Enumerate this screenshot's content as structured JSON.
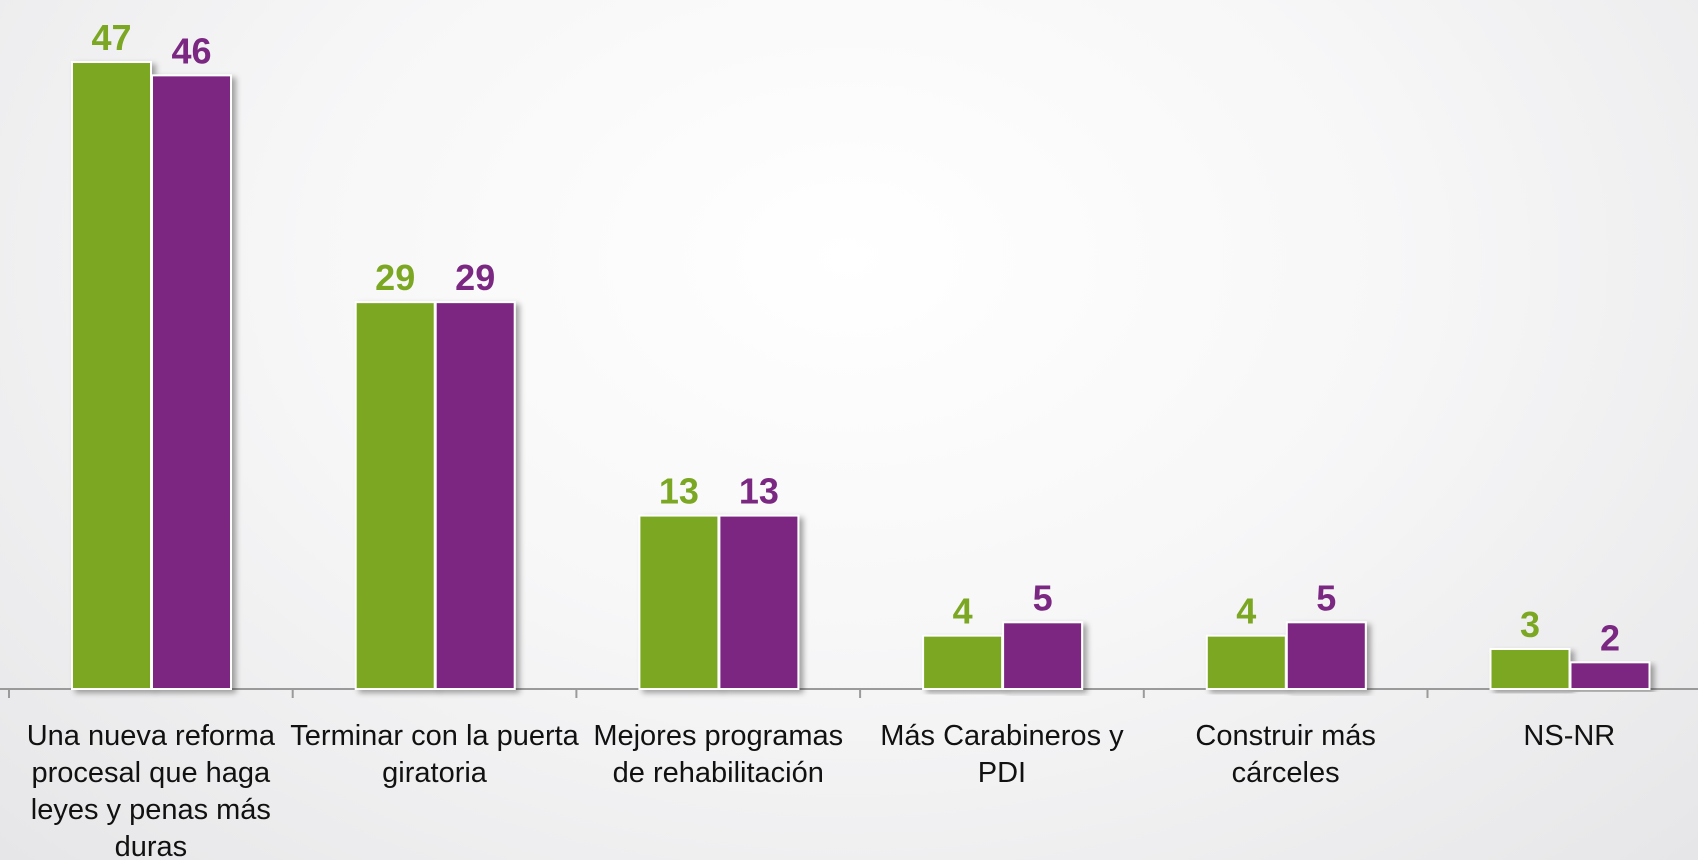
{
  "chart_data": {
    "type": "bar",
    "categories": [
      "Una nueva reforma procesal que haga leyes y penas más duras",
      "Terminar con la puerta giratoria",
      "Mejores programas de rehabilitación",
      "Más Carabineros y PDI",
      "Construir más cárceles",
      "NS-NR"
    ],
    "series": [
      {
        "color": "#7ba722",
        "values": [
          47,
          29,
          13,
          4,
          4,
          3
        ]
      },
      {
        "color": "#7b2882",
        "values": [
          46,
          29,
          13,
          5,
          5,
          2
        ]
      }
    ],
    "ylim": [
      0,
      50
    ]
  }
}
